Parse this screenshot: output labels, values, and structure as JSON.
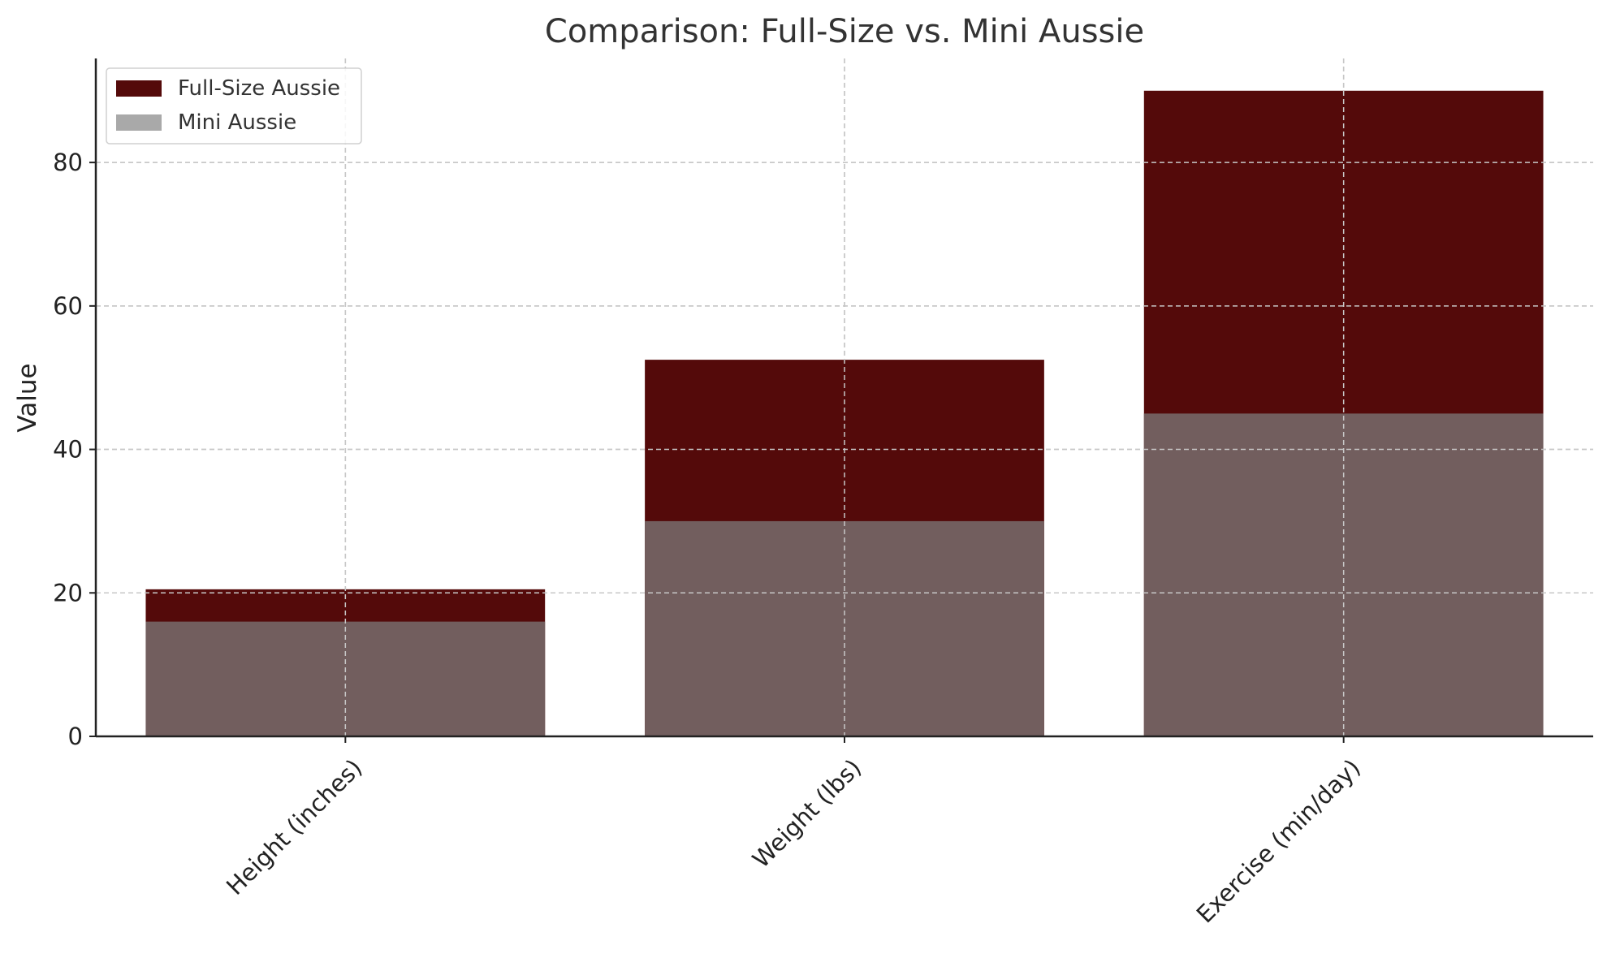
{
  "chart_data": {
    "type": "bar",
    "title": "Comparison: Full-Size vs. Mini Aussie",
    "xlabel": "",
    "ylabel": "Value",
    "categories": [
      "Height (inches)",
      "Weight (lbs)",
      "Exercise (min/day)"
    ],
    "series": [
      {
        "name": "Full-Size Aussie",
        "values": [
          20.5,
          52.5,
          90
        ],
        "color": "#540a0a"
      },
      {
        "name": "Mini Aussie",
        "values": [
          16,
          30,
          45
        ],
        "color": "#a9a9a9"
      }
    ],
    "overlap_color": "#725e5e",
    "ylim": [
      0,
      94.5
    ],
    "yticks": [
      0,
      20,
      40,
      60,
      80
    ],
    "grid": true,
    "legend_position": "upper left"
  }
}
